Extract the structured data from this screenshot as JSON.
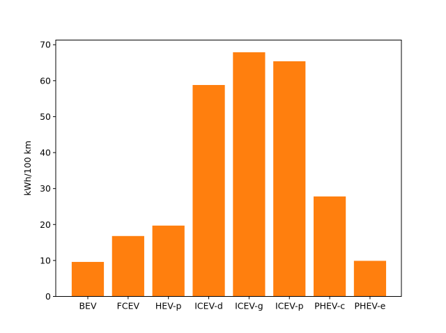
{
  "chart_data": {
    "type": "bar",
    "title": "",
    "xlabel": "",
    "ylabel": "kWh/100 km",
    "categories": [
      "BEV",
      "FCEV",
      "HEV-p",
      "ICEV-d",
      "ICEV-g",
      "ICEV-p",
      "PHEV-c",
      "PHEV-e"
    ],
    "values": [
      9.6,
      16.8,
      19.7,
      58.8,
      67.9,
      65.4,
      27.8,
      9.9
    ],
    "ylim": [
      0,
      71.3
    ],
    "yticks": [
      0,
      10,
      20,
      30,
      40,
      50,
      60,
      70
    ],
    "bar_color": "#ff7f0e",
    "grid": false,
    "legend": "none"
  }
}
